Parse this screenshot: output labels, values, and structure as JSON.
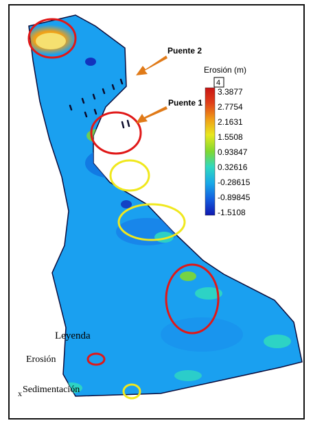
{
  "labels": {
    "bridge2": "Puente 2",
    "bridge1": "Puente 1"
  },
  "scale": {
    "title": "Erosión (m)",
    "badge": "4",
    "ticks": [
      "3.3877",
      "2.7754",
      "2.1631",
      "1.5508",
      "0.93847",
      "0.32616",
      "-0.28615",
      "-0.89845",
      "-1.5108"
    ],
    "colors": [
      "#c81414",
      "#e0401a",
      "#f0a018",
      "#e8e820",
      "#7fd830",
      "#30d8c0",
      "#18a8e8",
      "#1460e0",
      "#1018b0"
    ]
  },
  "legend": {
    "title": "Leyenda",
    "items": [
      {
        "label": "Erosión",
        "color": "#e01818"
      },
      {
        "label": "Sedimentación",
        "color": "#f0e81e"
      }
    ],
    "mark": "x"
  },
  "colors": {
    "arrow": "#e07a18",
    "river": "#1aa0f0"
  }
}
